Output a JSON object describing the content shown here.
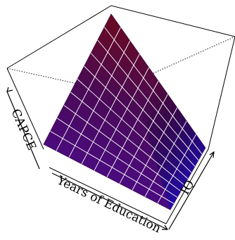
{
  "chart_data": {
    "type": "surface3d",
    "xlabel": "Years of Education",
    "ylabel": "IQ",
    "zlabel": "CAPCE",
    "grid": true,
    "surface": {
      "rows": 10,
      "cols": 10,
      "color_low": "#4b0b8a",
      "color_high": "#6a0a1f",
      "color_right_edge": "#1d0aa6"
    }
  }
}
